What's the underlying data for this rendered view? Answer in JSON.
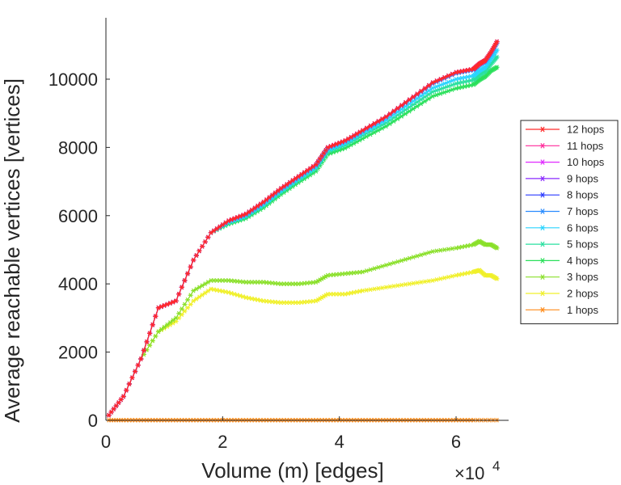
{
  "chart_data": {
    "type": "line",
    "title": "",
    "xlabel": "Volume (m) [edges]",
    "ylabel": "Average reachable vertices [vertices]",
    "x_multiplier_label": "×10",
    "x_multiplier_exponent": "4",
    "xlim": [
      0,
      6.9
    ],
    "ylim": [
      0,
      11800
    ],
    "x_ticks": [
      0,
      2,
      4,
      6
    ],
    "x_tick_labels": [
      "0",
      "2",
      "4",
      "6"
    ],
    "y_ticks": [
      0,
      2000,
      4000,
      6000,
      8000,
      10000
    ],
    "y_tick_labels": [
      "0",
      "2000",
      "4000",
      "6000",
      "8000",
      "10000"
    ],
    "grid": false,
    "legend_position": "right",
    "x_units_note": "x values in units of 10^4 edges",
    "series": [
      {
        "name": "12 hops",
        "color": "#ff2a2a",
        "marker": "asterisk",
        "x": [
          0.05,
          0.3,
          0.6,
          0.9,
          1.2,
          1.5,
          1.8,
          2.1,
          2.4,
          2.7,
          3.0,
          3.3,
          3.6,
          3.8,
          4.1,
          4.4,
          4.8,
          5.2,
          5.6,
          6.0,
          6.3,
          6.4,
          6.5,
          6.6,
          6.7
        ],
        "y": [
          150,
          700,
          1800,
          3300,
          3500,
          4700,
          5500,
          5850,
          6050,
          6400,
          6800,
          7150,
          7500,
          8000,
          8200,
          8500,
          8900,
          9400,
          9900,
          10200,
          10300,
          10450,
          10550,
          10800,
          11100
        ]
      },
      {
        "name": "11 hops",
        "color": "#ff2a9a",
        "marker": "asterisk",
        "x": [
          0.05,
          0.3,
          0.6,
          0.9,
          1.2,
          1.5,
          1.8,
          2.1,
          2.4,
          2.7,
          3.0,
          3.3,
          3.6,
          3.8,
          4.1,
          4.4,
          4.8,
          5.2,
          5.6,
          6.0,
          6.3,
          6.4,
          6.5,
          6.6,
          6.7
        ],
        "y": [
          150,
          700,
          1800,
          3300,
          3500,
          4700,
          5500,
          5850,
          6050,
          6400,
          6800,
          7150,
          7500,
          8000,
          8200,
          8500,
          8900,
          9400,
          9900,
          10200,
          10300,
          10450,
          10550,
          10800,
          11100
        ]
      },
      {
        "name": "10 hops",
        "color": "#e02aff",
        "marker": "asterisk",
        "x": [
          0.05,
          0.3,
          0.6,
          0.9,
          1.2,
          1.5,
          1.8,
          2.1,
          2.4,
          2.7,
          3.0,
          3.3,
          3.6,
          3.8,
          4.1,
          4.4,
          4.8,
          5.2,
          5.6,
          6.0,
          6.3,
          6.4,
          6.5,
          6.6,
          6.7
        ],
        "y": [
          150,
          700,
          1800,
          3300,
          3500,
          4700,
          5500,
          5850,
          6050,
          6400,
          6800,
          7150,
          7500,
          8000,
          8200,
          8500,
          8900,
          9400,
          9900,
          10200,
          10300,
          10450,
          10550,
          10800,
          11100
        ]
      },
      {
        "name": "9 hops",
        "color": "#8a2aff",
        "marker": "asterisk",
        "x": [
          0.05,
          0.3,
          0.6,
          0.9,
          1.2,
          1.5,
          1.8,
          2.1,
          2.4,
          2.7,
          3.0,
          3.3,
          3.6,
          3.8,
          4.1,
          4.4,
          4.8,
          5.2,
          5.6,
          6.0,
          6.3,
          6.4,
          6.5,
          6.6,
          6.7
        ],
        "y": [
          150,
          700,
          1800,
          3300,
          3500,
          4700,
          5500,
          5850,
          6050,
          6400,
          6800,
          7150,
          7500,
          8000,
          8200,
          8500,
          8900,
          9400,
          9900,
          10200,
          10300,
          10450,
          10550,
          10800,
          11100
        ]
      },
      {
        "name": "8 hops",
        "color": "#2a3aff",
        "marker": "asterisk",
        "x": [
          0.05,
          0.3,
          0.6,
          0.9,
          1.2,
          1.5,
          1.8,
          2.1,
          2.4,
          2.7,
          3.0,
          3.3,
          3.6,
          3.8,
          4.1,
          4.4,
          4.8,
          5.2,
          5.6,
          6.0,
          6.3,
          6.4,
          6.5,
          6.6,
          6.7
        ],
        "y": [
          150,
          700,
          1800,
          3300,
          3500,
          4700,
          5500,
          5850,
          6050,
          6400,
          6800,
          7150,
          7500,
          8000,
          8200,
          8500,
          8900,
          9400,
          9900,
          10200,
          10300,
          10450,
          10550,
          10800,
          11100
        ]
      },
      {
        "name": "7 hops",
        "color": "#2a8cff",
        "marker": "asterisk",
        "x": [
          0.05,
          0.3,
          0.6,
          0.9,
          1.2,
          1.5,
          1.8,
          2.1,
          2.4,
          2.7,
          3.0,
          3.3,
          3.6,
          3.8,
          4.1,
          4.4,
          4.8,
          5.2,
          5.6,
          6.0,
          6.3,
          6.4,
          6.5,
          6.6,
          6.7
        ],
        "y": [
          150,
          700,
          1800,
          3300,
          3500,
          4700,
          5500,
          5840,
          6030,
          6380,
          6780,
          7130,
          7480,
          7980,
          8180,
          8480,
          8880,
          9380,
          9870,
          10170,
          10270,
          10420,
          10520,
          10760,
          11050
        ]
      },
      {
        "name": "6 hops",
        "color": "#2ad4ff",
        "marker": "asterisk",
        "x": [
          0.05,
          0.3,
          0.6,
          0.9,
          1.2,
          1.5,
          1.8,
          2.1,
          2.4,
          2.7,
          3.0,
          3.3,
          3.6,
          3.8,
          4.1,
          4.4,
          4.8,
          5.2,
          5.6,
          6.0,
          6.3,
          6.4,
          6.5,
          6.6,
          6.7
        ],
        "y": [
          150,
          700,
          1800,
          3300,
          3500,
          4700,
          5500,
          5800,
          5990,
          6320,
          6720,
          7070,
          7420,
          7920,
          8120,
          8420,
          8800,
          9280,
          9740,
          10000,
          10100,
          10250,
          10350,
          10600,
          10850
        ]
      },
      {
        "name": "5 hops",
        "color": "#2ae0a0",
        "marker": "asterisk",
        "x": [
          0.05,
          0.3,
          0.6,
          0.9,
          1.2,
          1.5,
          1.8,
          2.1,
          2.4,
          2.7,
          3.0,
          3.3,
          3.6,
          3.8,
          4.1,
          4.4,
          4.8,
          5.2,
          5.6,
          6.0,
          6.3,
          6.4,
          6.5,
          6.6,
          6.7
        ],
        "y": [
          150,
          700,
          1800,
          3300,
          3500,
          4700,
          5500,
          5780,
          5960,
          6280,
          6680,
          7030,
          7370,
          7870,
          8060,
          8350,
          8720,
          9180,
          9630,
          9870,
          9980,
          10130,
          10230,
          10450,
          10650
        ]
      },
      {
        "name": "4 hops",
        "color": "#2ae05a",
        "marker": "asterisk",
        "x": [
          0.05,
          0.3,
          0.6,
          0.9,
          1.2,
          1.5,
          1.8,
          2.1,
          2.4,
          2.7,
          3.0,
          3.3,
          3.6,
          3.8,
          4.1,
          4.4,
          4.8,
          5.2,
          5.6,
          6.0,
          6.3,
          6.4,
          6.5,
          6.6,
          6.7
        ],
        "y": [
          150,
          700,
          1800,
          3300,
          3500,
          4700,
          5500,
          5750,
          5920,
          6230,
          6620,
          6970,
          7300,
          7800,
          7980,
          8260,
          8620,
          9060,
          9500,
          9730,
          9840,
          9980,
          10080,
          10250,
          10350
        ]
      },
      {
        "name": "3 hops",
        "color": "#8ae02a",
        "marker": "asterisk",
        "x": [
          0.05,
          0.3,
          0.6,
          0.9,
          1.2,
          1.5,
          1.8,
          2.1,
          2.4,
          2.7,
          3.0,
          3.3,
          3.6,
          3.8,
          4.1,
          4.4,
          4.8,
          5.2,
          5.6,
          6.0,
          6.3,
          6.4,
          6.5,
          6.6,
          6.7
        ],
        "y": [
          150,
          700,
          1800,
          2600,
          3000,
          3800,
          4100,
          4100,
          4050,
          4050,
          4000,
          4000,
          4050,
          4250,
          4300,
          4350,
          4550,
          4750,
          4950,
          5050,
          5150,
          5250,
          5150,
          5150,
          5050
        ]
      },
      {
        "name": "2 hops",
        "color": "#f0f02a",
        "marker": "asterisk",
        "x": [
          0.05,
          0.3,
          0.6,
          0.9,
          1.2,
          1.5,
          1.8,
          2.1,
          2.4,
          2.7,
          3.0,
          3.3,
          3.6,
          3.8,
          4.1,
          4.4,
          4.8,
          5.2,
          5.6,
          6.0,
          6.3,
          6.4,
          6.5,
          6.6,
          6.7
        ],
        "y": [
          150,
          700,
          1800,
          2600,
          2900,
          3500,
          3850,
          3750,
          3600,
          3500,
          3450,
          3450,
          3500,
          3700,
          3700,
          3800,
          3900,
          4000,
          4100,
          4250,
          4350,
          4400,
          4250,
          4250,
          4150
        ]
      },
      {
        "name": "1 hops",
        "color": "#ff8c1a",
        "marker": "asterisk",
        "x": [
          0.05,
          0.3,
          0.6,
          0.9,
          1.2,
          1.5,
          1.8,
          2.1,
          2.4,
          2.7,
          3.0,
          3.3,
          3.6,
          3.9,
          4.2,
          4.5,
          4.8,
          5.1,
          5.4,
          5.7,
          6.0,
          6.3,
          6.7
        ],
        "y": [
          5,
          5,
          5,
          5,
          5,
          5,
          5,
          5,
          5,
          5,
          5,
          5,
          5,
          5,
          5,
          5,
          5,
          5,
          5,
          5,
          5,
          5,
          5
        ]
      }
    ]
  }
}
